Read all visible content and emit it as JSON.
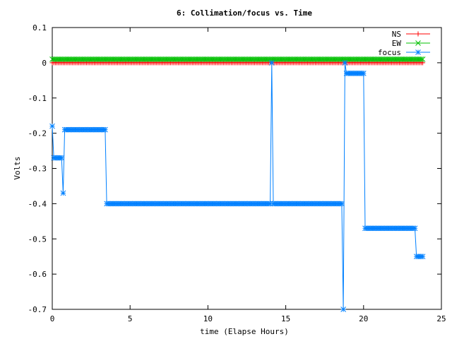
{
  "chart_data": {
    "type": "line",
    "title": "6: Collimation/focus vs. Time",
    "xlabel": "time (Elapse Hours)",
    "ylabel": "Volts",
    "xlim": [
      0,
      25
    ],
    "ylim": [
      -0.7,
      0.1
    ],
    "xticks": [
      0,
      5,
      10,
      15,
      20,
      25
    ],
    "xtick_labels": [
      "0",
      "5",
      "10",
      "15",
      "20",
      "25"
    ],
    "yticks": [
      0.1,
      0,
      -0.1,
      -0.2,
      -0.3,
      -0.4,
      -0.5,
      -0.6,
      -0.7
    ],
    "ytick_labels": [
      "0.1",
      "0",
      "-0.1",
      "-0.2",
      "-0.3",
      "-0.4",
      "-0.5",
      "-0.6",
      "-0.7"
    ],
    "grid": false,
    "legend_position": "top-right",
    "series": [
      {
        "name": "NS",
        "color": "#ff0000",
        "marker": "plus",
        "segments": [
          {
            "x_start": 0,
            "x_end": 23.8,
            "step": 0.1,
            "y": 0.0
          }
        ]
      },
      {
        "name": "EW",
        "color": "#00c000",
        "marker": "cross",
        "segments": [
          {
            "x_start": 0,
            "x_end": 23.8,
            "step": 0.1,
            "y": 0.01
          }
        ]
      },
      {
        "name": "focus",
        "color": "#0080ff",
        "marker": "star",
        "segments": [
          {
            "x_start": 0.0,
            "x_end": 0.0,
            "step": 0.1,
            "y": -0.18
          },
          {
            "x_start": 0.1,
            "x_end": 0.6,
            "step": 0.1,
            "y": -0.27
          },
          {
            "x_start": 0.7,
            "x_end": 0.7,
            "step": 0.1,
            "y": -0.37
          },
          {
            "x_start": 0.8,
            "x_end": 3.4,
            "step": 0.1,
            "y": -0.19
          },
          {
            "x_start": 3.5,
            "x_end": 14.0,
            "step": 0.1,
            "y": -0.4
          },
          {
            "x_start": 14.1,
            "x_end": 14.1,
            "step": 0.1,
            "y": 0.0
          },
          {
            "x_start": 14.2,
            "x_end": 18.6,
            "step": 0.1,
            "y": -0.4
          },
          {
            "x_start": 18.7,
            "x_end": 18.7,
            "step": 0.1,
            "y": -0.7
          },
          {
            "x_start": 18.8,
            "x_end": 18.8,
            "step": 0.1,
            "y": 0.0
          },
          {
            "x_start": 18.9,
            "x_end": 20.0,
            "step": 0.1,
            "y": -0.03
          },
          {
            "x_start": 20.1,
            "x_end": 23.3,
            "step": 0.1,
            "y": -0.47
          },
          {
            "x_start": 23.4,
            "x_end": 23.8,
            "step": 0.1,
            "y": -0.55
          }
        ]
      }
    ]
  }
}
